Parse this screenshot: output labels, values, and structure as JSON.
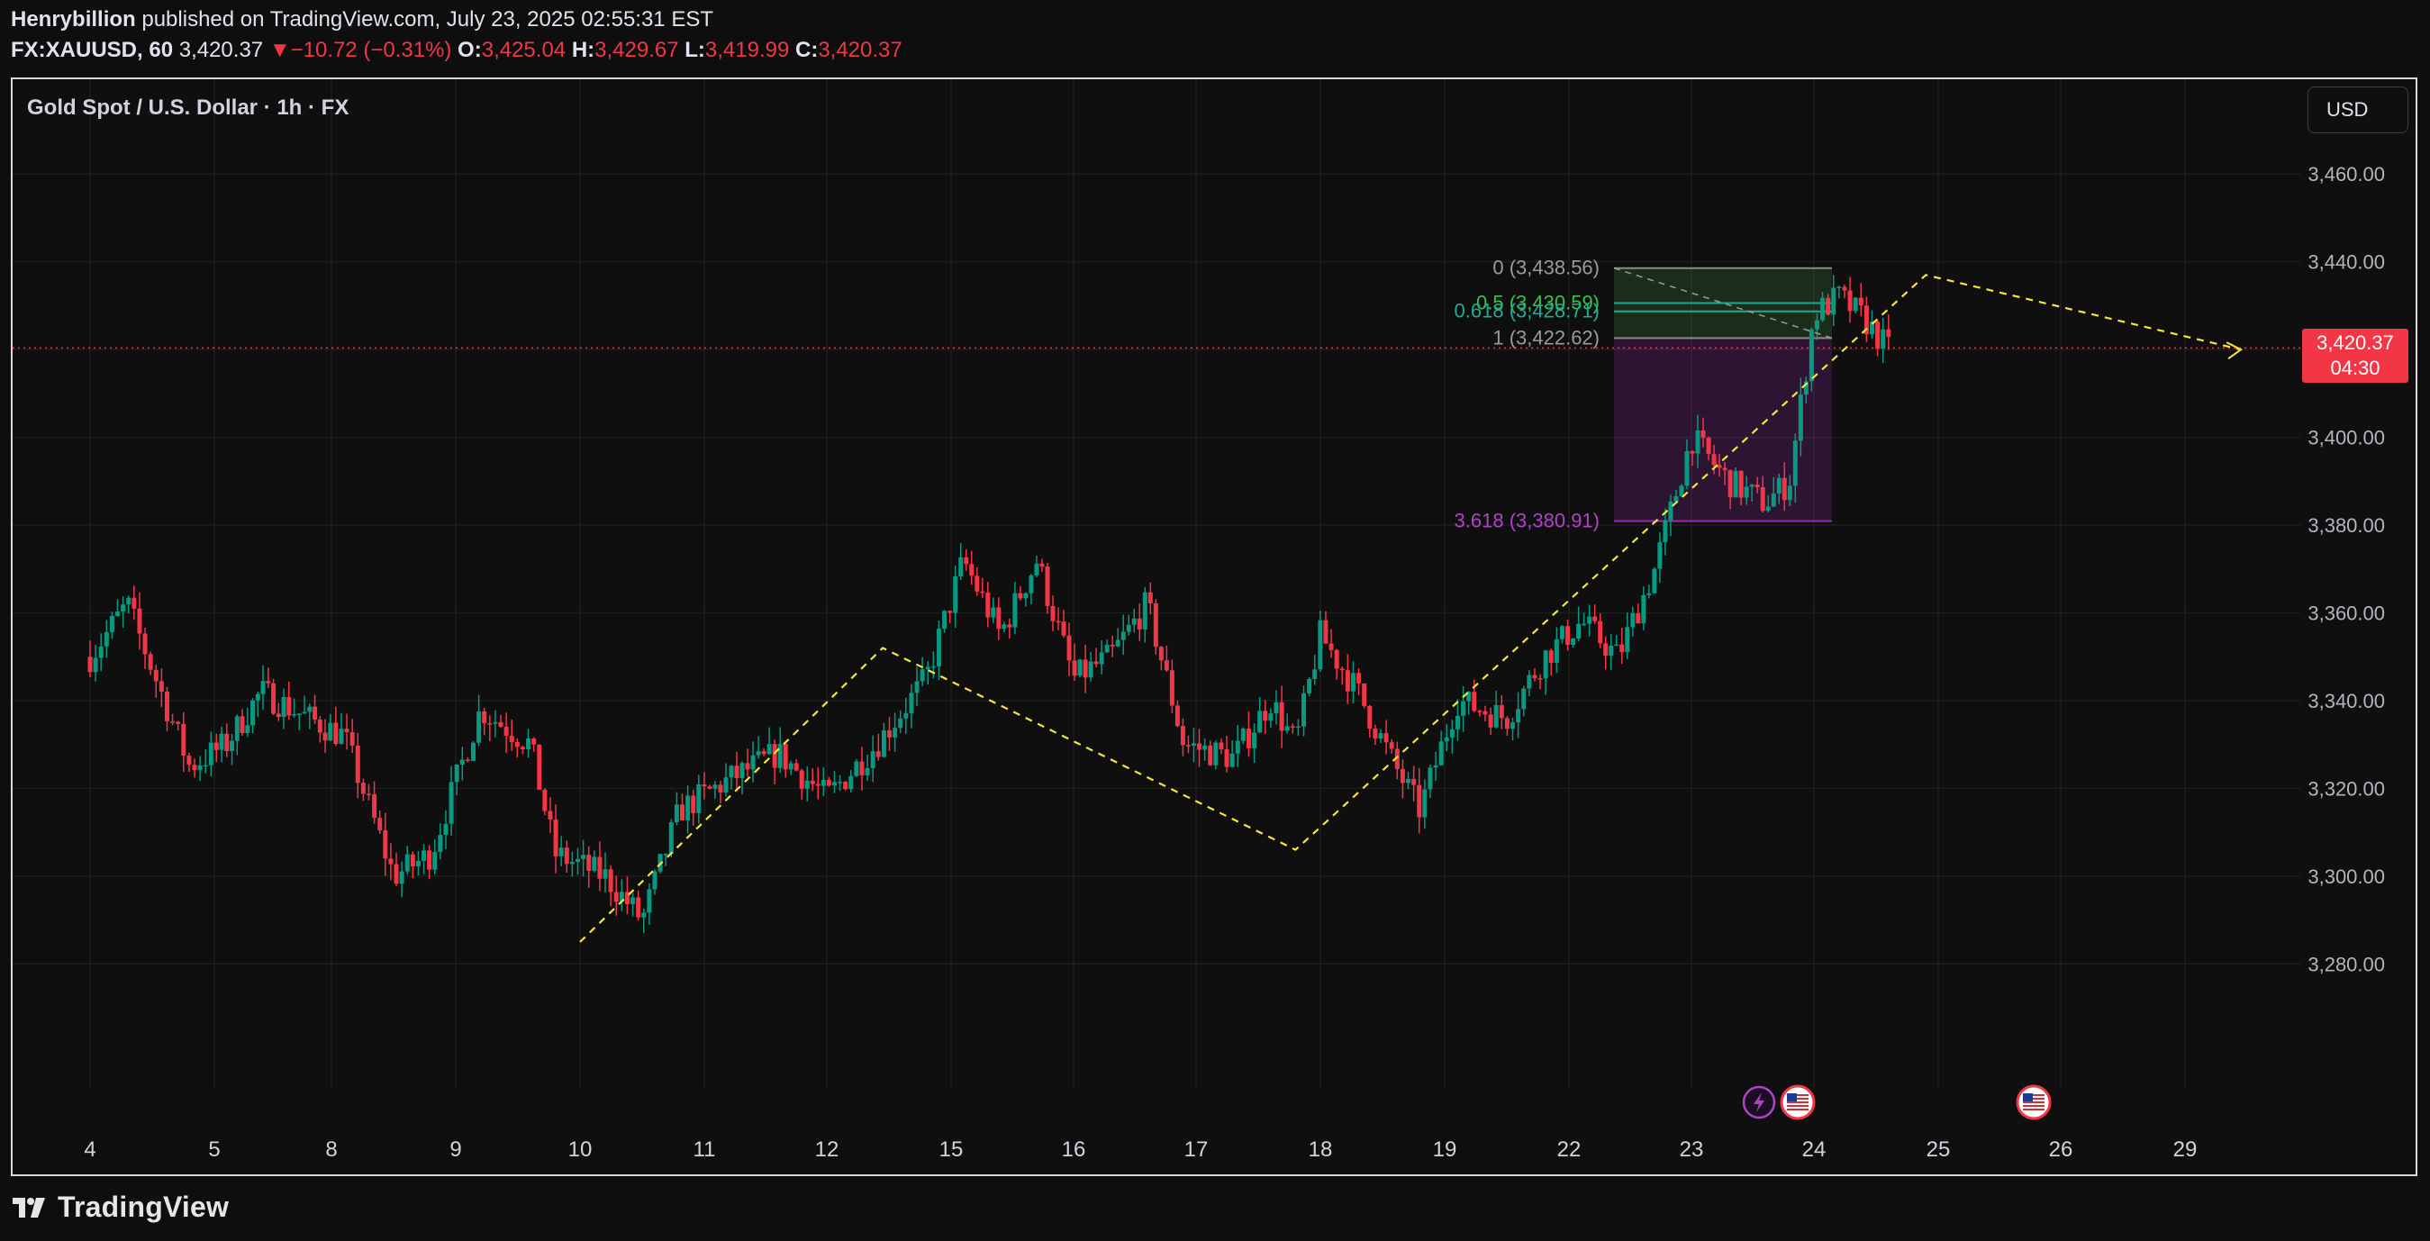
{
  "header": {
    "author": "Henrybillion",
    "published_text": "published on TradingView.com, July 23, 2025 02:55:31 EST",
    "symbol": "FX:XAUUSD, 60",
    "last": "3,420.37",
    "change_arrow": "▼",
    "change": "−10.72 (−0.31%)",
    "o_label": "O:",
    "o": "3,425.04",
    "h_label": "H:",
    "h": "3,429.67",
    "l_label": "L:",
    "l": "3,419.99",
    "c_label": "C:",
    "c": "3,420.37"
  },
  "chart_title": "Gold Spot / U.S. Dollar · 1h · FX",
  "currency_button": "USD",
  "last_price_badge": {
    "price": "3,420.37",
    "countdown": "04:30"
  },
  "footer": {
    "brand": "TradingView"
  },
  "colors": {
    "up": "#089981",
    "down": "#f23645",
    "background": "#0f0f0f",
    "zigzag": "#f5e63c",
    "fib_green": "#22ab94",
    "fib_purple": "#9c27b0",
    "last_price_line": "#f23645"
  },
  "chart_data": {
    "type": "candlestick",
    "title": "Gold Spot / U.S. Dollar · 1h · FX",
    "y_axis_ticks": [
      "3,280.00",
      "3,300.00",
      "3,320.00",
      "3,340.00",
      "3,360.00",
      "3,380.00",
      "3,400.00",
      "3,420.00",
      "3,440.00",
      "3,460.00"
    ],
    "ylim": [
      3262,
      3466
    ],
    "x_axis_ticks": [
      "4",
      "5",
      "8",
      "9",
      "10",
      "11",
      "12",
      "15",
      "16",
      "17",
      "18",
      "19",
      "22",
      "23",
      "24",
      "25",
      "26",
      "29"
    ],
    "grid": true,
    "last_price": 3420.37,
    "price_path": [
      {
        "t": 0.0,
        "p": 3350
      },
      {
        "t": 0.3,
        "p": 3362
      },
      {
        "t": 0.8,
        "p": 3325
      },
      {
        "t": 1.1,
        "p": 3330
      },
      {
        "t": 1.4,
        "p": 3342
      },
      {
        "t": 1.8,
        "p": 3336
      },
      {
        "t": 2.1,
        "p": 3332
      },
      {
        "t": 2.5,
        "p": 3300
      },
      {
        "t": 2.8,
        "p": 3305
      },
      {
        "t": 3.2,
        "p": 3338
      },
      {
        "t": 3.6,
        "p": 3330
      },
      {
        "t": 3.8,
        "p": 3305
      },
      {
        "t": 4.2,
        "p": 3300
      },
      {
        "t": 4.5,
        "p": 3290
      },
      {
        "t": 4.8,
        "p": 3315
      },
      {
        "t": 5.2,
        "p": 3322
      },
      {
        "t": 5.6,
        "p": 3328
      },
      {
        "t": 6.0,
        "p": 3318
      },
      {
        "t": 6.4,
        "p": 3330
      },
      {
        "t": 6.8,
        "p": 3345
      },
      {
        "t": 7.1,
        "p": 3372
      },
      {
        "t": 7.4,
        "p": 3355
      },
      {
        "t": 7.7,
        "p": 3372
      },
      {
        "t": 8.0,
        "p": 3345
      },
      {
        "t": 8.3,
        "p": 3350
      },
      {
        "t": 8.6,
        "p": 3362
      },
      {
        "t": 8.9,
        "p": 3330
      },
      {
        "t": 9.3,
        "p": 3327
      },
      {
        "t": 9.6,
        "p": 3340
      },
      {
        "t": 9.8,
        "p": 3330
      },
      {
        "t": 10.0,
        "p": 3355
      },
      {
        "t": 10.3,
        "p": 3342
      },
      {
        "t": 10.6,
        "p": 3325
      },
      {
        "t": 10.8,
        "p": 3315
      },
      {
        "t": 11.1,
        "p": 3340
      },
      {
        "t": 11.5,
        "p": 3336
      },
      {
        "t": 11.8,
        "p": 3350
      },
      {
        "t": 12.1,
        "p": 3358
      },
      {
        "t": 12.4,
        "p": 3350
      },
      {
        "t": 12.7,
        "p": 3370
      },
      {
        "t": 13.0,
        "p": 3400
      },
      {
        "t": 13.3,
        "p": 3390
      },
      {
        "t": 13.6,
        "p": 3385
      },
      {
        "t": 13.8,
        "p": 3390
      },
      {
        "t": 14.0,
        "p": 3428
      },
      {
        "t": 14.2,
        "p": 3432
      },
      {
        "t": 14.4,
        "p": 3427
      },
      {
        "t": 14.6,
        "p": 3420
      }
    ],
    "zigzag_projection": [
      {
        "t": 4.0,
        "p": 3285
      },
      {
        "t": 6.45,
        "p": 3352
      },
      {
        "t": 9.8,
        "p": 3306
      },
      {
        "t": 14.9,
        "p": 3437
      },
      {
        "t": 17.45,
        "p": 3420
      }
    ],
    "fibonacci": [
      {
        "level": "0",
        "price": 3438.56,
        "label": "0 (3,438.56)"
      },
      {
        "level": "0.5",
        "price": 3430.59,
        "label": "0.5 (3,430.59)"
      },
      {
        "level": "0.618",
        "price": 3428.71,
        "label": "0.618 (3,428.71)"
      },
      {
        "level": "1",
        "price": 3422.62,
        "label": "1 (3,422.62)"
      },
      {
        "level": "3.618",
        "price": 3380.91,
        "label": "3.618 (3,380.91)"
      }
    ],
    "events": [
      "lightning-icon",
      "us-flag-icon",
      "us-flag-icon"
    ]
  }
}
